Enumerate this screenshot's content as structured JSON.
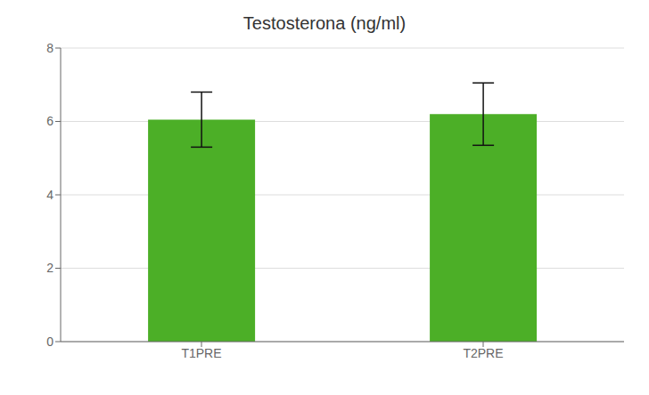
{
  "chart_data": {
    "type": "bar",
    "title": "Testosterona (ng/ml)",
    "categories": [
      "T1PRE",
      "T2PRE"
    ],
    "values": [
      6.05,
      6.2
    ],
    "errors": [
      0.75,
      0.85
    ],
    "color": "#4caf27",
    "ylim": [
      0,
      8
    ],
    "yticks": [
      0,
      2,
      4,
      6,
      8
    ],
    "grid": true
  }
}
